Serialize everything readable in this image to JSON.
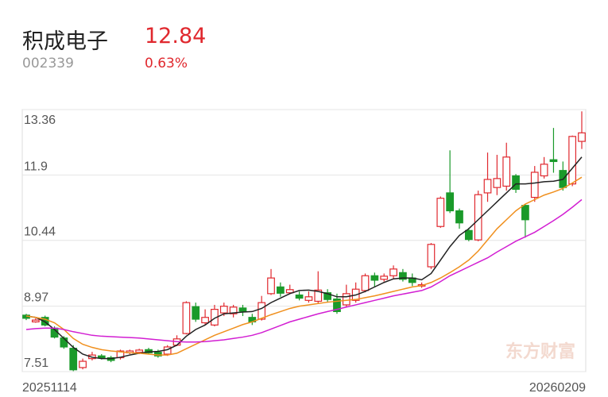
{
  "header": {
    "name": "积成电子",
    "code": "002339",
    "price": "12.84",
    "change": "0.63%"
  },
  "chart_data": {
    "type": "candlestick",
    "watermark": "东方财富",
    "categories": [
      "20251114",
      null,
      null,
      null,
      null,
      null,
      null,
      null,
      null,
      null,
      null,
      null,
      null,
      null,
      null,
      null,
      null,
      null,
      null,
      null,
      null,
      null,
      null,
      null,
      null,
      null,
      null,
      null,
      null,
      null,
      null,
      null,
      null,
      null,
      null,
      null,
      null,
      null,
      null,
      null,
      null,
      null,
      null,
      null,
      null,
      null,
      null,
      null,
      null,
      null,
      null,
      null,
      null,
      null,
      null,
      null,
      null,
      null,
      null,
      "20260209"
    ],
    "open": [
      8.77,
      8.62,
      8.72,
      8.48,
      8.26,
      8.03,
      7.6,
      7.8,
      7.86,
      7.82,
      7.82,
      7.93,
      7.94,
      8.0,
      7.94,
      7.9,
      8.1,
      8.36,
      8.96,
      8.6,
      8.55,
      8.82,
      8.8,
      8.93,
      8.72,
      8.68,
      9.25,
      9.4,
      9.27,
      9.22,
      9.1,
      9.08,
      9.27,
      9.13,
      9.0,
      9.1,
      9.32,
      9.65,
      9.57,
      9.65,
      9.72,
      9.6,
      9.42,
      9.85,
      10.75,
      11.5,
      11.1,
      10.66,
      10.45,
      11.5,
      11.62,
      11.65,
      11.88,
      11.22,
      11.4,
      11.88,
      12.24,
      12.0,
      11.7,
      12.65
    ],
    "high": [
      8.8,
      8.7,
      8.76,
      8.52,
      8.3,
      8.1,
      7.8,
      7.95,
      7.9,
      7.86,
      8.0,
      8.0,
      8.02,
      8.04,
      8.0,
      8.1,
      8.32,
      9.08,
      9.05,
      8.9,
      9.0,
      9.05,
      9.0,
      9.0,
      8.8,
      9.2,
      9.8,
      9.5,
      9.45,
      9.3,
      9.3,
      9.75,
      9.35,
      9.25,
      9.45,
      9.5,
      9.7,
      9.72,
      9.7,
      9.88,
      9.8,
      9.7,
      9.5,
      10.38,
      11.42,
      12.45,
      11.15,
      10.72,
      11.55,
      12.4,
      12.35,
      12.62,
      11.92,
      11.26,
      12.1,
      12.3,
      12.95,
      12.2,
      12.78,
      13.32
    ],
    "low": [
      8.66,
      8.6,
      8.52,
      8.25,
      8.02,
      7.52,
      7.56,
      7.76,
      7.78,
      7.72,
      7.78,
      7.9,
      7.9,
      7.9,
      7.82,
      7.86,
      8.08,
      8.34,
      8.62,
      8.55,
      8.52,
      8.75,
      8.72,
      8.75,
      8.55,
      8.65,
      9.22,
      9.18,
      9.25,
      9.1,
      9.05,
      9.02,
      9.05,
      8.8,
      8.95,
      9.05,
      9.28,
      9.4,
      9.52,
      9.58,
      9.52,
      9.42,
      9.38,
      9.8,
      10.72,
      11.05,
      10.7,
      10.42,
      10.42,
      11.3,
      11.45,
      11.55,
      11.5,
      10.5,
      11.3,
      11.82,
      11.95,
      11.55,
      11.65,
      12.48
    ],
    "close": [
      8.7,
      8.66,
      8.55,
      8.28,
      8.06,
      7.55,
      7.74,
      7.88,
      7.82,
      7.76,
      7.97,
      7.97,
      7.99,
      7.93,
      7.86,
      8.06,
      8.24,
      9.05,
      8.68,
      8.72,
      8.9,
      8.97,
      8.95,
      8.86,
      8.62,
      9.05,
      9.6,
      9.26,
      9.34,
      9.15,
      9.18,
      9.33,
      9.12,
      8.85,
      9.25,
      9.35,
      9.65,
      9.55,
      9.64,
      9.8,
      9.57,
      9.5,
      9.45,
      10.35,
      11.38,
      11.1,
      10.83,
      10.46,
      11.46,
      11.8,
      11.82,
      12.3,
      11.58,
      10.9,
      11.96,
      12.14,
      12.2,
      11.62,
      12.76,
      12.84
    ],
    "up_color": "#e0282e",
    "down_color": "#1a9a2a",
    "lines": [
      {
        "color": "#222222",
        "values": [
          8.75,
          8.72,
          8.62,
          8.45,
          8.25,
          8.05,
          7.9,
          7.83,
          7.8,
          7.8,
          7.83,
          7.88,
          7.92,
          7.95,
          7.96,
          8.0,
          8.1,
          8.3,
          8.45,
          8.55,
          8.7,
          8.8,
          8.82,
          8.84,
          8.85,
          8.92,
          9.05,
          9.15,
          9.25,
          9.32,
          9.33,
          9.3,
          9.25,
          9.18,
          9.18,
          9.22,
          9.3,
          9.4,
          9.5,
          9.58,
          9.6,
          9.6,
          9.56,
          9.7,
          10.0,
          10.3,
          10.55,
          10.7,
          10.9,
          11.1,
          11.3,
          11.5,
          11.7,
          11.7,
          11.72,
          11.75,
          11.76,
          11.8,
          12.05,
          12.3
        ]
      },
      {
        "color": "#f0901e",
        "values": [
          8.75,
          8.72,
          8.68,
          8.6,
          8.45,
          8.25,
          8.12,
          8.05,
          8.0,
          7.97,
          7.95,
          7.93,
          7.92,
          7.9,
          7.88,
          7.88,
          7.92,
          8.02,
          8.12,
          8.22,
          8.32,
          8.4,
          8.48,
          8.56,
          8.62,
          8.7,
          8.78,
          8.85,
          8.92,
          8.97,
          9.0,
          9.03,
          9.06,
          9.08,
          9.1,
          9.12,
          9.16,
          9.2,
          9.25,
          9.3,
          9.35,
          9.4,
          9.43,
          9.5,
          9.6,
          9.72,
          9.85,
          10.0,
          10.2,
          10.45,
          10.7,
          10.9,
          11.1,
          11.25,
          11.35,
          11.45,
          11.52,
          11.6,
          11.72,
          11.85
        ]
      },
      {
        "color": "#d21ed2",
        "values": [
          8.45,
          8.47,
          8.48,
          8.48,
          8.45,
          8.4,
          8.36,
          8.32,
          8.3,
          8.29,
          8.28,
          8.27,
          8.26,
          8.24,
          8.22,
          8.2,
          8.18,
          8.17,
          8.17,
          8.18,
          8.2,
          8.22,
          8.25,
          8.28,
          8.32,
          8.38,
          8.46,
          8.54,
          8.62,
          8.68,
          8.74,
          8.8,
          8.85,
          8.9,
          8.95,
          9.0,
          9.05,
          9.1,
          9.15,
          9.2,
          9.24,
          9.28,
          9.32,
          9.4,
          9.52,
          9.65,
          9.75,
          9.85,
          9.95,
          10.05,
          10.18,
          10.3,
          10.42,
          10.52,
          10.62,
          10.75,
          10.88,
          11.02,
          11.18,
          11.35
        ]
      }
    ],
    "ylim": [
      7.51,
      13.36
    ],
    "yticks": [
      13.36,
      11.9,
      10.44,
      8.97,
      7.51
    ],
    "grid": true
  }
}
